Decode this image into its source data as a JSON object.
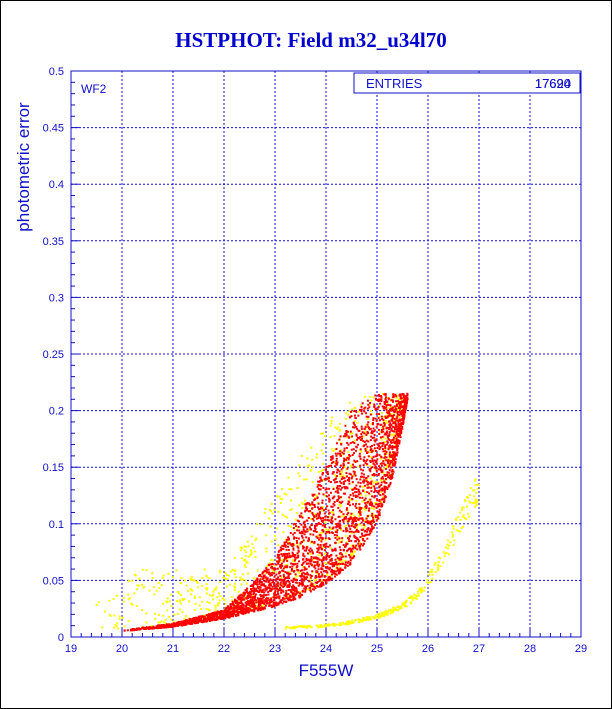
{
  "chart_data": {
    "type": "scatter",
    "title": "HSTPHOT: Field m32_u34l70",
    "xlabel": "F555W",
    "ylabel": "photometric error",
    "xlim": [
      19,
      29
    ],
    "ylim": [
      0,
      0.5
    ],
    "x_ticks": [
      19,
      20,
      21,
      22,
      23,
      24,
      25,
      26,
      27,
      28,
      29
    ],
    "y_ticks": [
      0,
      0.05,
      0.1,
      0.15,
      0.2,
      0.25,
      0.3,
      0.35,
      0.4,
      0.45,
      0.5
    ],
    "grid": true,
    "panel_label": "WF2",
    "stats_box": {
      "label": "ENTRIES",
      "values": [
        "17690",
        "17624"
      ]
    },
    "series": [
      {
        "color": "#ff0000",
        "marker": "square",
        "envelope": {
          "lower_edge": [
            [
              20.0,
              0.005
            ],
            [
              21.0,
              0.009
            ],
            [
              22.0,
              0.016
            ],
            [
              23.0,
              0.027
            ],
            [
              23.5,
              0.035
            ],
            [
              24.0,
              0.047
            ],
            [
              24.5,
              0.065
            ],
            [
              25.0,
              0.1
            ],
            [
              25.3,
              0.14
            ],
            [
              25.5,
              0.185
            ],
            [
              25.6,
              0.21
            ]
          ],
          "upper_edge": [
            [
              20.0,
              0.006
            ],
            [
              21.0,
              0.012
            ],
            [
              22.0,
              0.024
            ],
            [
              22.5,
              0.045
            ],
            [
              23.0,
              0.07
            ],
            [
              23.5,
              0.11
            ],
            [
              24.0,
              0.15
            ],
            [
              24.5,
              0.2
            ],
            [
              25.0,
              0.215
            ],
            [
              25.6,
              0.215
            ]
          ],
          "cap": 0.216
        }
      },
      {
        "color": "#ffff00",
        "marker": "square",
        "envelope": {
          "lower_edge": [
            [
              19.3,
              0.01
            ],
            [
              20.0,
              0.006
            ],
            [
              21.0,
              0.01
            ],
            [
              22.0,
              0.018
            ],
            [
              23.0,
              0.03
            ],
            [
              23.5,
              0.038
            ],
            [
              24.0,
              0.05
            ],
            [
              24.5,
              0.07
            ],
            [
              25.0,
              0.105
            ],
            [
              25.3,
              0.15
            ],
            [
              25.5,
              0.2
            ]
          ],
          "upper_edge": [
            [
              22.0,
              0.06
            ],
            [
              22.5,
              0.09
            ],
            [
              23.0,
              0.13
            ],
            [
              23.5,
              0.16
            ],
            [
              24.0,
              0.19
            ],
            [
              24.5,
              0.21
            ],
            [
              25.0,
              0.215
            ],
            [
              25.5,
              0.215
            ]
          ],
          "cap": 0.216
        },
        "sequence": [
          [
            23.2,
            0.008
          ],
          [
            24.0,
            0.01
          ],
          [
            24.5,
            0.013
          ],
          [
            25.0,
            0.018
          ],
          [
            25.5,
            0.027
          ],
          [
            25.8,
            0.038
          ],
          [
            26.0,
            0.05
          ],
          [
            26.3,
            0.07
          ],
          [
            26.6,
            0.1
          ],
          [
            26.9,
            0.125
          ],
          [
            27.0,
            0.13
          ]
        ]
      }
    ]
  }
}
